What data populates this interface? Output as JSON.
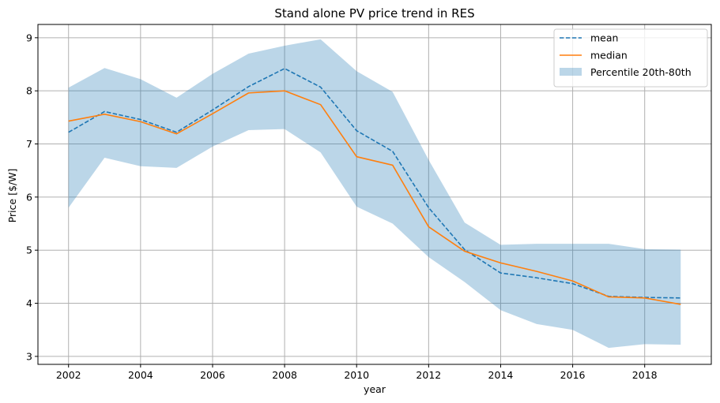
{
  "chart_data": {
    "type": "line",
    "title": "Stand alone PV price trend in RES",
    "xlabel": "year",
    "ylabel": "Price [$/W]",
    "xlim": [
      2001.15,
      2019.85
    ],
    "ylim": [
      2.85,
      9.25
    ],
    "xticks": [
      "2002",
      "2004",
      "2006",
      "2008",
      "2010",
      "2012",
      "2014",
      "2016",
      "2018"
    ],
    "yticks": [
      "3",
      "4",
      "5",
      "6",
      "7",
      "8",
      "9"
    ],
    "grid": true,
    "legend_position": "top-right",
    "x": [
      2002,
      2003,
      2004,
      2005,
      2006,
      2007,
      2008,
      2009,
      2010,
      2011,
      2012,
      2013,
      2014,
      2015,
      2016,
      2017,
      2018,
      2019
    ],
    "series": [
      {
        "name": "mean",
        "style": "dashed",
        "color": "#1f77b4",
        "values": [
          7.22,
          7.61,
          7.46,
          7.22,
          7.64,
          8.08,
          8.42,
          8.07,
          7.25,
          6.86,
          5.8,
          5.01,
          4.57,
          4.48,
          4.37,
          4.13,
          4.11,
          4.1
        ]
      },
      {
        "name": "median",
        "style": "solid",
        "color": "#ff7f0e",
        "values": [
          7.43,
          7.56,
          7.42,
          7.19,
          7.57,
          7.96,
          8.0,
          7.74,
          6.76,
          6.6,
          5.44,
          4.98,
          4.76,
          4.6,
          4.42,
          4.12,
          4.1,
          3.98
        ]
      }
    ],
    "band": {
      "name": "Percentile 20th-80th",
      "color": "#1f77b4",
      "lower": [
        5.8,
        6.74,
        6.58,
        6.55,
        6.95,
        7.26,
        7.28,
        6.84,
        5.82,
        5.5,
        4.87,
        4.4,
        3.87,
        3.61,
        3.5,
        3.16,
        3.23,
        3.22
      ],
      "upper": [
        8.06,
        8.43,
        8.22,
        7.87,
        8.32,
        8.7,
        8.85,
        8.97,
        8.37,
        7.98,
        6.7,
        5.52,
        5.1,
        5.12,
        5.12,
        5.12,
        5.02,
        5.01
      ]
    }
  }
}
